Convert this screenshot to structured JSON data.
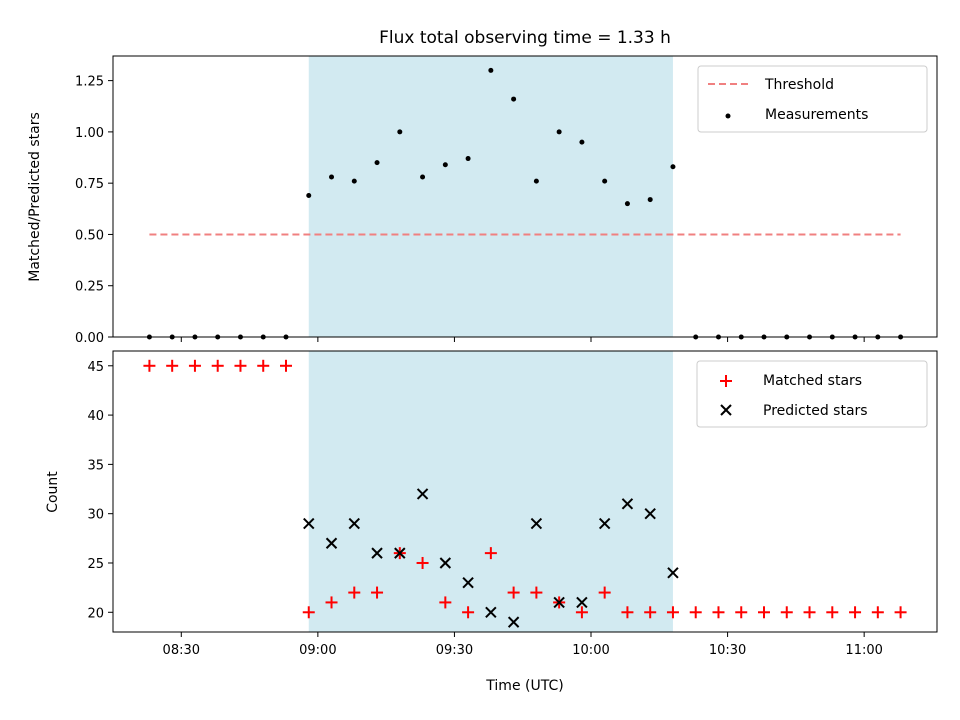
{
  "title": "Flux total observing time = 1.33 h",
  "xlabel": "Time (UTC)",
  "x_ticks": [
    "08:30",
    "09:00",
    "09:30",
    "10:00",
    "10:30",
    "11:00"
  ],
  "colors": {
    "shade": "#add8e6",
    "threshold": "#f08080",
    "matched": "#ff0000",
    "predicted": "#000000",
    "measurement": "#000000"
  },
  "chart_data": [
    {
      "type": "scatter",
      "panel": "top",
      "ylabel": "Matched/Predicted stars",
      "ylim": [
        0,
        1.37
      ],
      "y_ticks": [
        "0.00",
        "0.25",
        "0.50",
        "0.75",
        "1.00",
        "1.25"
      ],
      "shaded_interval": [
        "08:58",
        "10:18"
      ],
      "threshold": {
        "name": "Threshold",
        "value": 0.5,
        "x_range": [
          "08:23",
          "11:08"
        ]
      },
      "series": [
        {
          "name": "Measurements",
          "points": [
            [
              "08:23",
              0
            ],
            [
              "08:28",
              0
            ],
            [
              "08:33",
              0
            ],
            [
              "08:38",
              0
            ],
            [
              "08:43",
              0
            ],
            [
              "08:48",
              0
            ],
            [
              "08:53",
              0
            ],
            [
              "08:58",
              0.69
            ],
            [
              "09:03",
              0.78
            ],
            [
              "09:08",
              0.76
            ],
            [
              "09:13",
              0.85
            ],
            [
              "09:18",
              1.0
            ],
            [
              "09:23",
              0.78
            ],
            [
              "09:28",
              0.84
            ],
            [
              "09:33",
              0.87
            ],
            [
              "09:38",
              1.3
            ],
            [
              "09:43",
              1.16
            ],
            [
              "09:48",
              0.76
            ],
            [
              "09:53",
              1.0
            ],
            [
              "09:58",
              0.95
            ],
            [
              "10:03",
              0.76
            ],
            [
              "10:08",
              0.65
            ],
            [
              "10:13",
              0.67
            ],
            [
              "10:18",
              0.83
            ],
            [
              "10:23",
              0
            ],
            [
              "10:28",
              0
            ],
            [
              "10:33",
              0
            ],
            [
              "10:38",
              0
            ],
            [
              "10:43",
              0
            ],
            [
              "10:48",
              0
            ],
            [
              "10:53",
              0
            ],
            [
              "10:58",
              0
            ],
            [
              "11:03",
              0
            ],
            [
              "11:08",
              0
            ]
          ]
        }
      ],
      "legend": {
        "placement": "upper right",
        "entries": [
          "Threshold",
          "Measurements"
        ]
      }
    },
    {
      "type": "scatter",
      "panel": "bottom",
      "ylabel": "Count",
      "ylim": [
        18,
        46.5
      ],
      "y_ticks": [
        "20",
        "25",
        "30",
        "35",
        "40",
        "45"
      ],
      "shaded_interval": [
        "08:58",
        "10:18"
      ],
      "series": [
        {
          "name": "Matched stars",
          "marker": "+",
          "points": [
            [
              "08:23",
              45
            ],
            [
              "08:28",
              45
            ],
            [
              "08:33",
              45
            ],
            [
              "08:38",
              45
            ],
            [
              "08:43",
              45
            ],
            [
              "08:48",
              45
            ],
            [
              "08:53",
              45
            ],
            [
              "08:58",
              20
            ],
            [
              "09:03",
              21
            ],
            [
              "09:08",
              22
            ],
            [
              "09:13",
              22
            ],
            [
              "09:18",
              26
            ],
            [
              "09:23",
              25
            ],
            [
              "09:28",
              21
            ],
            [
              "09:33",
              20
            ],
            [
              "09:38",
              26
            ],
            [
              "09:43",
              22
            ],
            [
              "09:48",
              22
            ],
            [
              "09:53",
              21
            ],
            [
              "09:58",
              20
            ],
            [
              "10:03",
              22
            ],
            [
              "10:08",
              20
            ],
            [
              "10:13",
              20
            ],
            [
              "10:18",
              20
            ],
            [
              "10:23",
              20
            ],
            [
              "10:28",
              20
            ],
            [
              "10:33",
              20
            ],
            [
              "10:38",
              20
            ],
            [
              "10:43",
              20
            ],
            [
              "10:48",
              20
            ],
            [
              "10:53",
              20
            ],
            [
              "10:58",
              20
            ],
            [
              "11:03",
              20
            ],
            [
              "11:08",
              20
            ]
          ]
        },
        {
          "name": "Predicted stars",
          "marker": "x",
          "points": [
            [
              "08:58",
              29
            ],
            [
              "09:03",
              27
            ],
            [
              "09:08",
              29
            ],
            [
              "09:13",
              26
            ],
            [
              "09:18",
              26
            ],
            [
              "09:23",
              32
            ],
            [
              "09:28",
              25
            ],
            [
              "09:33",
              23
            ],
            [
              "09:38",
              20
            ],
            [
              "09:43",
              19
            ],
            [
              "09:48",
              29
            ],
            [
              "09:53",
              21
            ],
            [
              "09:58",
              21
            ],
            [
              "10:03",
              29
            ],
            [
              "10:08",
              31
            ],
            [
              "10:13",
              30
            ],
            [
              "10:18",
              24
            ]
          ]
        }
      ],
      "legend": {
        "placement": "upper right",
        "entries": [
          "Matched stars",
          "Predicted stars"
        ]
      }
    }
  ]
}
